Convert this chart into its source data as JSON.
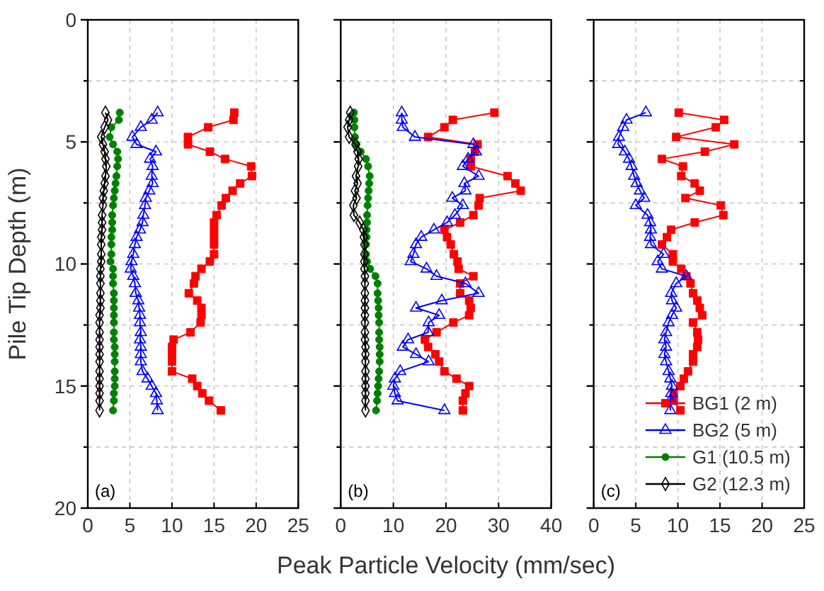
{
  "chart_data": [
    {
      "type": "line",
      "ylabel": "Pile Tip Depth (m)",
      "annotations": [
        "(a)"
      ],
      "xlim": [
        0,
        25
      ],
      "xticks": [
        0,
        5,
        10,
        15,
        20,
        25
      ],
      "ylim": [
        20,
        0
      ],
      "yticks": [
        0,
        {
          "value": 2.5,
          "label": null
        },
        5,
        {
          "value": 7.5,
          "label": null
        },
        10,
        {
          "value": 12.5,
          "label": null
        },
        15,
        {
          "value": 17.5,
          "label": null
        },
        20
      ],
      "grid": true,
      "line_style": "solid",
      "series": [
        {
          "color": "#ff0000",
          "marker": "square",
          "x": [
            17.4,
            17.3,
            14.3,
            11.9,
            11.9,
            14.5,
            16.3,
            19.4,
            19.5,
            18.1,
            17.2,
            16.4,
            15.9,
            15.3,
            15.0,
            15.0,
            15.0,
            15.0,
            15.0,
            14.5,
            13.5,
            12.8,
            12.6,
            12.0,
            13.0,
            13.5,
            13.5,
            13.4,
            12.2,
            10.2,
            10.0,
            10.0,
            10.0,
            10.0,
            12.4,
            13.0,
            13.6,
            14.4,
            15.8
          ],
          "values": [
            3.8,
            4.1,
            4.4,
            4.8,
            5.1,
            5.4,
            5.7,
            6.0,
            6.4,
            6.7,
            7.0,
            7.3,
            7.6,
            8.0,
            8.3,
            8.6,
            8.9,
            9.2,
            9.6,
            9.9,
            10.2,
            10.5,
            10.8,
            11.2,
            11.5,
            11.8,
            12.1,
            12.4,
            12.8,
            13.1,
            13.4,
            13.7,
            14.0,
            14.4,
            14.7,
            15.0,
            15.3,
            15.6,
            16.0
          ]
        },
        {
          "color": "#0000ff",
          "marker": "triangle",
          "x": [
            8.3,
            7.6,
            6.3,
            5.3,
            5.8,
            8.1,
            7.4,
            7.7,
            7.6,
            7.7,
            7.3,
            6.9,
            6.8,
            6.6,
            6.5,
            6.2,
            5.8,
            5.6,
            5.4,
            5.2,
            5.1,
            5.4,
            5.6,
            5.7,
            6.0,
            6.1,
            6.2,
            6.2,
            6.3,
            6.2,
            6.3,
            6.3,
            6.3,
            6.5,
            7.1,
            7.6,
            8.1,
            8.2,
            8.3
          ],
          "values": [
            3.8,
            4.1,
            4.4,
            4.8,
            5.1,
            5.4,
            5.7,
            6.0,
            6.4,
            6.7,
            7.0,
            7.3,
            7.6,
            8.0,
            8.3,
            8.6,
            8.9,
            9.2,
            9.6,
            9.9,
            10.2,
            10.5,
            10.8,
            11.2,
            11.5,
            11.8,
            12.1,
            12.4,
            12.8,
            13.1,
            13.4,
            13.7,
            14.0,
            14.4,
            14.7,
            15.0,
            15.3,
            15.6,
            16.0
          ]
        },
        {
          "color": "#008000",
          "marker": "circle",
          "x": [
            3.8,
            3.7,
            2.8,
            2.6,
            3.0,
            3.5,
            3.6,
            3.5,
            3.4,
            3.3,
            3.2,
            3.1,
            3.0,
            2.9,
            2.9,
            2.9,
            2.8,
            2.8,
            2.8,
            2.7,
            3.0,
            3.0,
            3.0,
            3.1,
            3.1,
            3.1,
            3.1,
            3.1,
            3.1,
            3.1,
            3.2,
            3.2,
            3.2,
            3.2,
            3.2,
            3.2,
            3.1,
            3.1,
            3.0
          ],
          "values": [
            3.8,
            4.1,
            4.4,
            4.8,
            5.1,
            5.4,
            5.7,
            6.0,
            6.4,
            6.7,
            7.0,
            7.3,
            7.6,
            8.0,
            8.3,
            8.6,
            8.9,
            9.2,
            9.6,
            9.9,
            10.2,
            10.5,
            10.8,
            11.2,
            11.5,
            11.8,
            12.1,
            12.4,
            12.8,
            13.1,
            13.4,
            13.7,
            14.0,
            14.4,
            14.7,
            15.0,
            15.3,
            15.6,
            16.0
          ]
        },
        {
          "color": "#000000",
          "marker": "diamond",
          "x": [
            2.1,
            2.4,
            2.0,
            1.6,
            1.8,
            2.0,
            2.1,
            2.2,
            2.1,
            2.0,
            1.9,
            1.8,
            1.8,
            1.7,
            1.7,
            1.7,
            1.6,
            1.6,
            1.6,
            1.6,
            1.5,
            1.5,
            1.5,
            1.5,
            1.5,
            1.5,
            1.4,
            1.4,
            1.4,
            1.4,
            1.4,
            1.4,
            1.4,
            1.4,
            1.4,
            1.4,
            1.4,
            1.4,
            1.4
          ],
          "values": [
            3.8,
            4.1,
            4.4,
            4.8,
            5.1,
            5.4,
            5.7,
            6.0,
            6.4,
            6.7,
            7.0,
            7.3,
            7.6,
            8.0,
            8.3,
            8.6,
            8.9,
            9.2,
            9.6,
            9.9,
            10.2,
            10.5,
            10.8,
            11.2,
            11.5,
            11.8,
            12.1,
            12.4,
            12.8,
            13.1,
            13.4,
            13.7,
            14.0,
            14.4,
            14.7,
            15.0,
            15.3,
            15.6,
            16.0
          ]
        }
      ]
    },
    {
      "type": "line",
      "xlabel": "Peak Particle Velocity (mm/sec)",
      "annotations": [
        "(b)"
      ],
      "xlim": [
        0,
        40
      ],
      "xticks": [
        0,
        10,
        20,
        30,
        40
      ],
      "ylim": [
        20,
        0
      ],
      "yticks": [
        0,
        {
          "value": 2.5,
          "label": null
        },
        5,
        {
          "value": 7.5,
          "label": null
        },
        10,
        {
          "value": 12.5,
          "label": null
        },
        15,
        {
          "value": 17.5,
          "label": null
        },
        20
      ],
      "grid": true,
      "tick_labels": "x",
      "line_style": "solid",
      "series": [
        {
          "color": "#ff0000",
          "marker": "square",
          "x": [
            29.2,
            21.3,
            19.7,
            16.6,
            26.0,
            25.5,
            24.7,
            24.7,
            31.7,
            33.2,
            34.2,
            26.4,
            26.2,
            25.2,
            22.7,
            19.7,
            20.2,
            20.9,
            21.5,
            22.2,
            22.4,
            25.2,
            22.7,
            22.7,
            24.4,
            24.7,
            24.4,
            21.4,
            18.2,
            16.0,
            16.6,
            18.0,
            18.7,
            19.7,
            22.0,
            24.4,
            23.7,
            23.2,
            23.2
          ],
          "values": [
            3.8,
            4.1,
            4.4,
            4.8,
            5.1,
            5.4,
            5.7,
            6.0,
            6.4,
            6.7,
            7.0,
            7.3,
            7.6,
            8.0,
            8.3,
            8.6,
            8.9,
            9.2,
            9.6,
            9.9,
            10.2,
            10.5,
            10.8,
            11.2,
            11.5,
            11.8,
            12.1,
            12.4,
            12.8,
            13.1,
            13.4,
            13.7,
            14.0,
            14.4,
            14.7,
            15.0,
            15.3,
            15.6,
            16.0
          ]
        },
        {
          "color": "#0000ff",
          "marker": "triangle",
          "x": [
            11.6,
            11.6,
            11.8,
            14.1,
            25.2,
            25.7,
            24.2,
            23.2,
            26.2,
            23.5,
            23.7,
            21.2,
            23.2,
            21.7,
            20.2,
            17.7,
            15.3,
            14.3,
            13.8,
            13.3,
            16.3,
            18.2,
            23.7,
            26.2,
            19.2,
            14.3,
            18.7,
            16.7,
            16.6,
            12.8,
            11.8,
            14.3,
            16.7,
            11.3,
            10.3,
            10.0,
            10.3,
            10.8,
            19.7
          ],
          "values": [
            3.8,
            4.1,
            4.4,
            4.8,
            5.1,
            5.4,
            5.7,
            6.0,
            6.4,
            6.7,
            7.0,
            7.3,
            7.6,
            8.0,
            8.3,
            8.6,
            8.9,
            9.2,
            9.6,
            9.9,
            10.2,
            10.5,
            10.8,
            11.2,
            11.5,
            11.8,
            12.1,
            12.4,
            12.8,
            13.1,
            13.4,
            13.7,
            14.0,
            14.4,
            14.7,
            15.0,
            15.3,
            15.6,
            16.0
          ]
        },
        {
          "color": "#008000",
          "marker": "circle",
          "x": [
            2.5,
            2.6,
            2.6,
            2.7,
            3.0,
            3.8,
            4.8,
            5.2,
            5.5,
            5.4,
            5.3,
            5.2,
            5.1,
            5.0,
            5.0,
            4.9,
            4.9,
            4.8,
            4.8,
            5.0,
            5.6,
            6.6,
            7.0,
            7.0,
            7.1,
            7.2,
            7.2,
            7.3,
            7.3,
            7.3,
            7.4,
            7.4,
            7.4,
            7.3,
            7.2,
            7.1,
            7.0,
            6.9,
            6.7
          ],
          "values": [
            3.8,
            4.1,
            4.4,
            4.8,
            5.1,
            5.4,
            5.7,
            6.0,
            6.4,
            6.7,
            7.0,
            7.3,
            7.6,
            8.0,
            8.3,
            8.6,
            8.9,
            9.2,
            9.6,
            9.9,
            10.2,
            10.5,
            10.8,
            11.2,
            11.5,
            11.8,
            12.1,
            12.4,
            12.8,
            13.1,
            13.4,
            13.7,
            14.0,
            14.4,
            14.7,
            15.0,
            15.3,
            15.6,
            16.0
          ]
        },
        {
          "color": "#000000",
          "marker": "diamond",
          "x": [
            1.8,
            1.6,
            1.3,
            1.6,
            2.8,
            3.2,
            3.4,
            3.3,
            2.9,
            3.2,
            2.7,
            3.0,
            2.4,
            2.5,
            3.6,
            4.3,
            4.4,
            4.5,
            4.5,
            4.5,
            4.5,
            4.6,
            4.6,
            4.6,
            4.6,
            4.6,
            4.6,
            4.6,
            4.6,
            4.6,
            4.7,
            4.7,
            4.7,
            4.7,
            4.7,
            4.7,
            4.7,
            4.7,
            4.7
          ],
          "values": [
            3.8,
            4.1,
            4.4,
            4.8,
            5.1,
            5.4,
            5.7,
            6.0,
            6.4,
            6.7,
            7.0,
            7.3,
            7.6,
            8.0,
            8.3,
            8.6,
            8.9,
            9.2,
            9.6,
            9.9,
            10.2,
            10.5,
            10.8,
            11.2,
            11.5,
            11.8,
            12.1,
            12.4,
            12.8,
            13.1,
            13.4,
            13.7,
            14.0,
            14.4,
            14.7,
            15.0,
            15.3,
            15.6,
            16.0
          ]
        }
      ]
    },
    {
      "type": "line",
      "annotations": [
        "(c)"
      ],
      "xlim": [
        0,
        25
      ],
      "xticks": [
        0,
        5,
        10,
        15,
        20,
        25
      ],
      "ylim": [
        20,
        0
      ],
      "yticks": [
        0,
        {
          "value": 2.5,
          "label": null
        },
        5,
        {
          "value": 7.5,
          "label": null
        },
        10,
        {
          "value": 12.5,
          "label": null
        },
        15,
        {
          "value": 17.5,
          "label": null
        },
        20
      ],
      "grid": true,
      "tick_labels": "x",
      "legend": "bottom right",
      "line_style": "solid",
      "series": [
        {
          "name": "BG1 (2 m)",
          "color": "#ff0000",
          "marker": "square",
          "x": [
            10.1,
            15.5,
            14.5,
            9.8,
            16.7,
            13.2,
            8.1,
            10.6,
            10.4,
            12.0,
            12.6,
            10.9,
            15.1,
            15.4,
            12.0,
            9.2,
            8.7,
            8.1,
            9.4,
            9.4,
            10.4,
            11.0,
            11.5,
            11.8,
            12.3,
            12.6,
            12.9,
            11.8,
            12.3,
            12.4,
            12.3,
            11.8,
            11.8,
            11.2,
            10.7,
            10.3,
            9.5,
            9.5,
            10.3
          ],
          "values": [
            3.8,
            4.1,
            4.4,
            4.8,
            5.1,
            5.4,
            5.7,
            6.0,
            6.4,
            6.7,
            7.0,
            7.3,
            7.6,
            8.0,
            8.3,
            8.6,
            8.9,
            9.2,
            9.6,
            9.9,
            10.2,
            10.5,
            10.8,
            11.2,
            11.5,
            11.8,
            12.1,
            12.4,
            12.8,
            13.1,
            13.4,
            13.7,
            14.0,
            14.4,
            14.7,
            15.0,
            15.3,
            15.6,
            16.0
          ]
        },
        {
          "name": "BG2 (5 m)",
          "color": "#0000ff",
          "marker": "triangle",
          "x": [
            6.2,
            3.9,
            3.5,
            3.0,
            2.9,
            3.7,
            4.2,
            4.5,
            4.8,
            5.1,
            5.5,
            6.0,
            5.0,
            6.4,
            6.7,
            6.8,
            6.7,
            6.8,
            8.3,
            7.6,
            8.1,
            11.0,
            9.8,
            9.2,
            9.3,
            9.8,
            9.3,
            8.9,
            8.6,
            8.4,
            8.6,
            8.4,
            8.6,
            8.9,
            9.1,
            9.3,
            9.2,
            9.1,
            9.1
          ],
          "values": [
            3.8,
            4.1,
            4.4,
            4.8,
            5.1,
            5.4,
            5.7,
            6.0,
            6.4,
            6.7,
            7.0,
            7.3,
            7.6,
            8.0,
            8.3,
            8.6,
            8.9,
            9.2,
            9.6,
            9.9,
            10.2,
            10.5,
            10.8,
            11.2,
            11.5,
            11.8,
            12.1,
            12.4,
            12.8,
            13.1,
            13.4,
            13.7,
            14.0,
            14.4,
            14.7,
            15.0,
            15.3,
            15.6,
            16.0
          ]
        },
        {
          "name": "G1 (10.5 m)",
          "color": "#008000",
          "marker": "circle"
        },
        {
          "name": "G2 (12.3 m)",
          "color": "#000000",
          "marker": "diamond"
        }
      ]
    }
  ]
}
